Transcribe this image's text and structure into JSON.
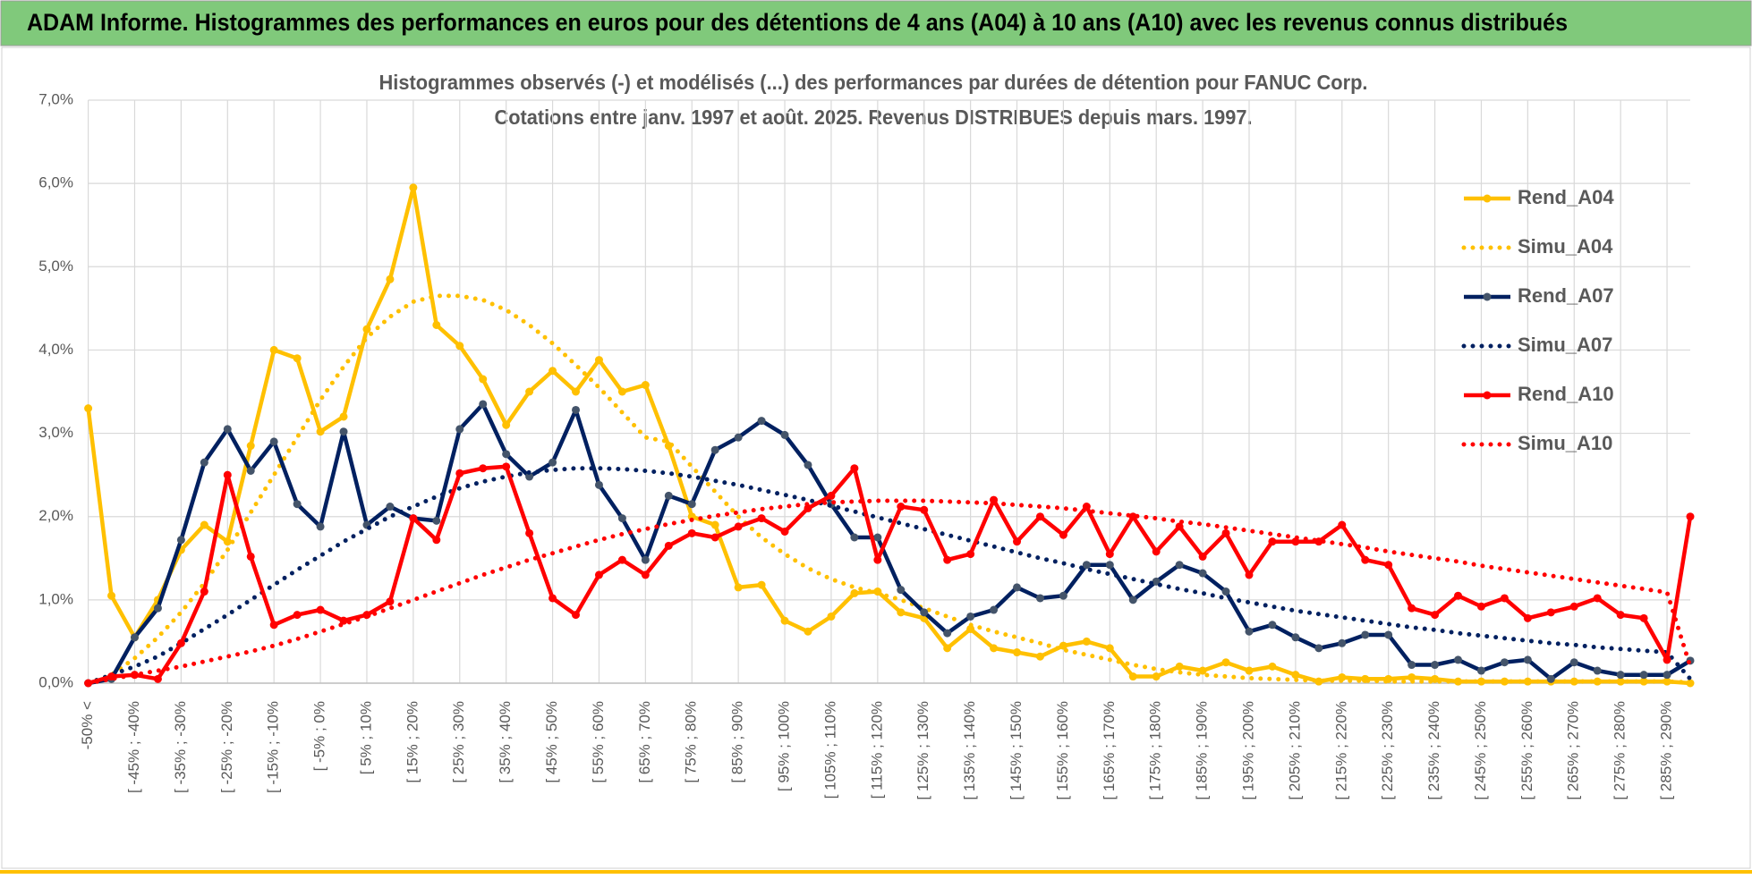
{
  "header": {
    "title": "ADAM Informe. Histogrammes des performances en euros pour des détentions de 4 ans (A04) à 10 ans (A10) avec les revenus connus distribués"
  },
  "chart_data": {
    "type": "line",
    "title": "Histogrammes observés (-) et modélisés (...) des performances par durées de détention pour FANUC Corp.",
    "subtitle": "Cotations entre janv. 1997 et août. 2025. Revenus DISTRIBUES depuis mars. 1997.",
    "categories": [
      "-50% <",
      null,
      "[ -45% ; -40%",
      null,
      "[ -35% ; -30%",
      null,
      "[ -25% ; -20%",
      null,
      "[ -15% ; -10%",
      null,
      "[ -5% ; 0%",
      null,
      "[ 5% ; 10%",
      null,
      "[ 15% ; 20%",
      null,
      "[ 25% ; 30%",
      null,
      "[ 35% ; 40%",
      null,
      "[ 45% ; 50%",
      null,
      "[ 55% ; 60%",
      null,
      "[ 65% ; 70%",
      null,
      "[ 75% ; 80%",
      null,
      "[ 85% ; 90%",
      null,
      "[ 95% ; 100%",
      null,
      "[ 105% ; 110%",
      null,
      "[ 115% ; 120%",
      null,
      "[ 125% ; 130%",
      null,
      "[ 135% ; 140%",
      null,
      "[ 145% ; 150%",
      null,
      "[ 155% ; 160%",
      null,
      "[ 165% ; 170%",
      null,
      "[ 175% ; 180%",
      null,
      "[ 185% ; 190%",
      null,
      "[ 195% ; 200%",
      null,
      "[ 205% ; 210%",
      null,
      "[ 215% ; 220%",
      null,
      "[ 225% ; 230%",
      null,
      "[ 235% ; 240%",
      null,
      "[ 245% ; 250%",
      null,
      "[ 255% ; 260%",
      null,
      "[ 265% ; 270%",
      null,
      "[ 275% ; 280%",
      null,
      "[ 285% ; 290%",
      null
    ],
    "series": [
      {
        "name": "Rend_A04",
        "color": "#FFC000",
        "line_style": "solid",
        "markers": true,
        "values": [
          3.3,
          1.05,
          0.55,
          1.0,
          1.6,
          1.9,
          1.7,
          2.85,
          4.0,
          3.9,
          3.02,
          3.2,
          4.25,
          4.85,
          5.95,
          4.3,
          4.05,
          3.65,
          3.1,
          3.5,
          3.75,
          3.5,
          3.88,
          3.5,
          3.58,
          2.85,
          2.0,
          1.9,
          1.15,
          1.18,
          0.75,
          0.62,
          0.8,
          1.08,
          1.1,
          0.85,
          0.78,
          0.42,
          0.65,
          0.42,
          0.37,
          0.32,
          0.45,
          0.5,
          0.42,
          0.08,
          0.08,
          0.2,
          0.15,
          0.25,
          0.15,
          0.2,
          0.1,
          0.02,
          0.07,
          0.05,
          0.05,
          0.07,
          0.05,
          0.02,
          0.02,
          0.02,
          0.02,
          0.02,
          0.02,
          0.02,
          0.02,
          0.02,
          0.02,
          0.0
        ]
      },
      {
        "name": "Simu_A04",
        "color": "#FFC000",
        "line_style": "dotted",
        "markers": false,
        "values": [
          0.0,
          0.1,
          0.3,
          0.55,
          0.85,
          1.2,
          1.6,
          2.05,
          2.5,
          2.95,
          3.4,
          3.8,
          4.15,
          4.4,
          4.58,
          4.65,
          4.65,
          4.6,
          4.48,
          4.3,
          4.08,
          3.82,
          3.55,
          3.25,
          2.95,
          2.9,
          2.6,
          2.3,
          2.0,
          1.75,
          1.55,
          1.38,
          1.25,
          1.15,
          1.08,
          1.0,
          0.9,
          0.8,
          0.7,
          0.62,
          0.55,
          0.48,
          0.4,
          0.34,
          0.28,
          0.22,
          0.17,
          0.13,
          0.1,
          0.08,
          0.06,
          0.05,
          0.04,
          0.03,
          0.03,
          0.03,
          0.02,
          0.02,
          0.02,
          0.02,
          0.02,
          0.02,
          0.02,
          0.02,
          0.02,
          0.02,
          0.02,
          0.02,
          0.02,
          0.01
        ]
      },
      {
        "name": "Rend_A07",
        "color": "#002060",
        "line_style": "solid",
        "markers": true,
        "values": [
          0.0,
          0.05,
          0.55,
          0.9,
          1.72,
          2.65,
          3.05,
          2.55,
          2.9,
          2.15,
          1.88,
          3.02,
          1.9,
          2.12,
          1.98,
          1.95,
          3.05,
          3.35,
          2.75,
          2.48,
          2.65,
          3.28,
          2.38,
          1.98,
          1.48,
          2.25,
          2.15,
          2.8,
          2.95,
          3.15,
          2.98,
          2.62,
          2.15,
          1.75,
          1.75,
          1.12,
          0.85,
          0.6,
          0.8,
          0.88,
          1.15,
          1.02,
          1.05,
          1.42,
          1.42,
          1.0,
          1.22,
          1.42,
          1.32,
          1.1,
          0.62,
          0.7,
          0.55,
          0.42,
          0.48,
          0.58,
          0.58,
          0.22,
          0.22,
          0.28,
          0.15,
          0.25,
          0.28,
          0.05,
          0.25,
          0.15,
          0.1,
          0.1,
          0.1,
          0.27
        ]
      },
      {
        "name": "Simu_A07",
        "color": "#002060",
        "line_style": "dotted",
        "markers": false,
        "values": [
          0.0,
          0.1,
          0.2,
          0.32,
          0.48,
          0.65,
          0.82,
          1.0,
          1.18,
          1.36,
          1.53,
          1.7,
          1.85,
          2.0,
          2.12,
          2.24,
          2.34,
          2.42,
          2.48,
          2.53,
          2.56,
          2.58,
          2.58,
          2.57,
          2.55,
          2.52,
          2.48,
          2.43,
          2.38,
          2.32,
          2.26,
          2.2,
          2.13,
          2.06,
          1.99,
          1.92,
          1.85,
          1.78,
          1.71,
          1.64,
          1.57,
          1.5,
          1.44,
          1.37,
          1.31,
          1.25,
          1.19,
          1.13,
          1.08,
          1.02,
          0.97,
          0.92,
          0.87,
          0.83,
          0.79,
          0.75,
          0.71,
          0.67,
          0.64,
          0.6,
          0.57,
          0.54,
          0.51,
          0.48,
          0.46,
          0.43,
          0.41,
          0.39,
          0.37,
          0.05
        ]
      },
      {
        "name": "Rend_A10",
        "color": "#FF0000",
        "line_style": "solid",
        "markers": true,
        "values": [
          0.0,
          0.08,
          0.1,
          0.05,
          0.48,
          1.1,
          2.5,
          1.52,
          0.7,
          0.82,
          0.88,
          0.75,
          0.82,
          0.98,
          1.98,
          1.72,
          2.52,
          2.58,
          2.6,
          1.8,
          1.02,
          0.82,
          1.3,
          1.48,
          1.3,
          1.65,
          1.8,
          1.75,
          1.88,
          1.98,
          1.82,
          2.1,
          2.25,
          2.58,
          1.48,
          2.12,
          2.08,
          1.48,
          1.55,
          2.2,
          1.7,
          2.0,
          1.78,
          2.12,
          1.55,
          2.0,
          1.58,
          1.88,
          1.52,
          1.8,
          1.3,
          1.7,
          1.7,
          1.7,
          1.9,
          1.48,
          1.42,
          0.9,
          0.82,
          1.05,
          0.92,
          1.02,
          0.78,
          0.85,
          0.92,
          1.02,
          0.82,
          0.78,
          0.28,
          2.0
        ]
      },
      {
        "name": "Simu_A10",
        "color": "#FF0000",
        "line_style": "dotted",
        "markers": false,
        "values": [
          0.0,
          0.05,
          0.1,
          0.15,
          0.2,
          0.26,
          0.32,
          0.38,
          0.45,
          0.53,
          0.62,
          0.71,
          0.8,
          0.9,
          1.0,
          1.1,
          1.2,
          1.3,
          1.39,
          1.48,
          1.56,
          1.64,
          1.72,
          1.79,
          1.85,
          1.91,
          1.96,
          2.01,
          2.05,
          2.09,
          2.12,
          2.15,
          2.17,
          2.18,
          2.19,
          2.19,
          2.19,
          2.18,
          2.17,
          2.16,
          2.14,
          2.12,
          2.1,
          2.07,
          2.04,
          2.01,
          1.98,
          1.94,
          1.91,
          1.87,
          1.83,
          1.79,
          1.75,
          1.71,
          1.67,
          1.63,
          1.58,
          1.54,
          1.5,
          1.46,
          1.41,
          1.37,
          1.33,
          1.29,
          1.25,
          1.21,
          1.17,
          1.13,
          1.09,
          0.2
        ]
      }
    ],
    "ylim": [
      0,
      7
    ],
    "yticks": [
      {
        "value": 0,
        "label": "0,0%"
      },
      {
        "value": 1,
        "label": "1,0%"
      },
      {
        "value": 2,
        "label": "2,0%"
      },
      {
        "value": 3,
        "label": "3,0%"
      },
      {
        "value": 4,
        "label": "4,0%"
      },
      {
        "value": 5,
        "label": "5,0%"
      },
      {
        "value": 6,
        "label": "6,0%"
      },
      {
        "value": 7,
        "label": "7,0%"
      }
    ],
    "grid": true,
    "legend": "right"
  }
}
